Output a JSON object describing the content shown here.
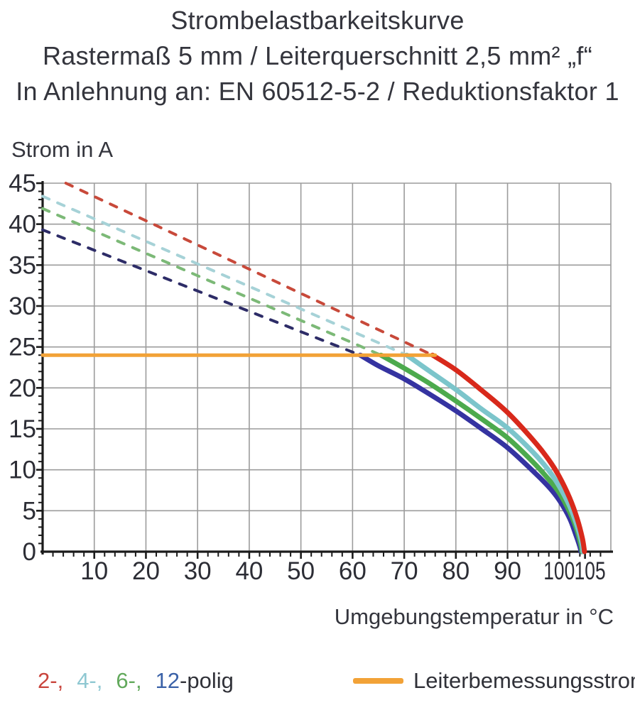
{
  "title": {
    "line1": "Strombelastbarkeitskurve",
    "line2": "Rastermaß 5 mm / Leiterquerschnitt 2,5 mm² „f“",
    "line3": "In Anlehnung an: EN 60512-5-2 / Reduktionsfaktor 1"
  },
  "legend": {
    "poles": [
      {
        "label": "2-,",
        "color": "#c9453d"
      },
      {
        "label": "4-,",
        "color": "#8fc8d2"
      },
      {
        "label": "6-,",
        "color": "#62a95c"
      },
      {
        "label": "12",
        "color": "#3b62a8"
      }
    ],
    "suffix": "-polig",
    "rated": {
      "label": "Leiterbemessungsstrom",
      "color": "#f2a237"
    }
  },
  "chart_data": {
    "type": "line",
    "title": "Strombelastbarkeitskurve — Rastermaß 5 mm / Leiterquerschnitt 2,5 mm² „f“ / In Anlehnung an: EN 60512-5-2 / Reduktionsfaktor 1",
    "xlabel": "Umgebungstemperatur in °C",
    "ylabel": "Strom in A",
    "xlim": [
      0,
      110
    ],
    "ylim": [
      0,
      45
    ],
    "grid": true,
    "x_major_step": 10,
    "x_minor_step": 2,
    "y_major_step": 5,
    "y_minor_step": 1,
    "x_tick_labels": [
      10,
      20,
      30,
      40,
      50,
      60,
      70,
      80,
      90,
      100,
      105
    ],
    "x_tick_dx": {
      "105": 7
    },
    "y_tick_labels": [
      0,
      5,
      10,
      15,
      20,
      25,
      30,
      35,
      40,
      45
    ],
    "colors": {
      "grid": "#9c9c9c",
      "axis": "#1b1b1b",
      "text": "#2c2d35"
    },
    "rated_current": {
      "name": "Leiterbemessungsstrom",
      "value_A": 24,
      "x_start": 0,
      "x_end": 76,
      "color": "#f2a237"
    },
    "series": [
      {
        "name": "12-polig",
        "color": "#3533a1",
        "dash_color": "#2d2c67",
        "dashed": [
          [
            0,
            39.3
          ],
          [
            61.5,
            24
          ]
        ],
        "solid": [
          [
            61.5,
            24
          ],
          [
            65,
            22.7
          ],
          [
            70,
            21.1
          ],
          [
            75,
            19.2
          ],
          [
            80,
            17.2
          ],
          [
            85,
            15.0
          ],
          [
            90,
            12.7
          ],
          [
            95,
            9.8
          ],
          [
            98,
            7.9
          ],
          [
            100,
            6.3
          ],
          [
            102,
            4.1
          ],
          [
            103.2,
            2.1
          ],
          [
            104.0,
            0.6
          ],
          [
            104.2,
            0
          ]
        ]
      },
      {
        "name": "6-polig",
        "color": "#4caa4d",
        "dash_color": "#7cb977",
        "dashed": [
          [
            0,
            41.9
          ],
          [
            65.5,
            24
          ]
        ],
        "solid": [
          [
            65.5,
            24
          ],
          [
            70,
            22.4
          ],
          [
            75,
            20.5
          ],
          [
            80,
            18.4
          ],
          [
            85,
            16.2
          ],
          [
            90,
            13.9
          ],
          [
            95,
            10.9
          ],
          [
            98,
            8.8
          ],
          [
            100,
            7.2
          ],
          [
            102,
            4.9
          ],
          [
            103.3,
            2.9
          ],
          [
            104.2,
            0.8
          ],
          [
            104.4,
            0
          ]
        ]
      },
      {
        "name": "4-polig",
        "color": "#7cc5cb",
        "dash_color": "#a6d2d7",
        "dashed": [
          [
            0,
            43.4
          ],
          [
            70.5,
            24
          ]
        ],
        "solid": [
          [
            70.5,
            24
          ],
          [
            75,
            22.0
          ],
          [
            80,
            19.8
          ],
          [
            85,
            17.4
          ],
          [
            90,
            15.1
          ],
          [
            95,
            12.1
          ],
          [
            98,
            9.9
          ],
          [
            100,
            8.0
          ],
          [
            102,
            5.6
          ],
          [
            103.5,
            3.1
          ],
          [
            104.4,
            1.0
          ],
          [
            104.6,
            0
          ]
        ]
      },
      {
        "name": "2-polig",
        "color": "#d8291b",
        "dash_color": "#c8493a",
        "dashed": [
          [
            4.5,
            45
          ],
          [
            75.5,
            24
          ]
        ],
        "solid": [
          [
            75.5,
            24
          ],
          [
            80,
            22.2
          ],
          [
            85,
            19.7
          ],
          [
            90,
            17.0
          ],
          [
            95,
            13.6
          ],
          [
            98,
            11.2
          ],
          [
            100,
            9.2
          ],
          [
            102,
            6.6
          ],
          [
            103.5,
            4.0
          ],
          [
            104.5,
            1.6
          ],
          [
            104.9,
            0
          ]
        ]
      }
    ]
  }
}
